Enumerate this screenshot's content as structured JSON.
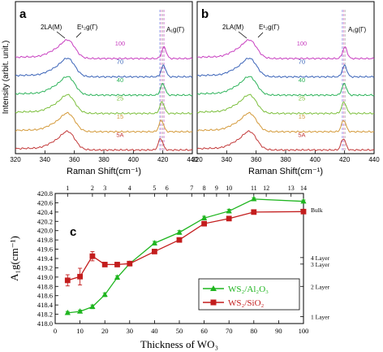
{
  "panels": {
    "a": {
      "letter": "a"
    },
    "b": {
      "letter": "b"
    },
    "c": {
      "letter": "c"
    }
  },
  "chart_data": [
    {
      "panel": "a",
      "type": "line",
      "xlabel": "Raman Shift(cm⁻¹)",
      "ylabel": "Intensity (arbit. unit.)",
      "xlim": [
        320,
        440
      ],
      "xticks": [
        320,
        340,
        360,
        380,
        400,
        420,
        440
      ],
      "peak_labels": [
        "2LA(M)",
        "E¹₂g(Γ)",
        "A₁g(Γ)"
      ],
      "dashed_lines_x": [
        418.0,
        419.0,
        420.0,
        420.8
      ],
      "series": [
        {
          "name": "100",
          "color": "#c83fc0",
          "peak1": 356,
          "peak2": 420.8
        },
        {
          "name": "70",
          "color": "#3a63b8",
          "peak1": 356,
          "peak2": 420.5
        },
        {
          "name": "40",
          "color": "#2db35a",
          "peak1": 356,
          "peak2": 420.0
        },
        {
          "name": "25",
          "color": "#7cbf3c",
          "peak1": 356,
          "peak2": 419.5
        },
        {
          "name": "15",
          "color": "#d49a3a",
          "peak1": 356,
          "peak2": 419.0
        },
        {
          "name": "5A",
          "color": "#c33a3a",
          "peak1": 356,
          "peak2": 418.5
        }
      ]
    },
    {
      "panel": "b",
      "type": "line",
      "xlabel": "Raman Shift(cm⁻¹)",
      "xlim": [
        320,
        440
      ],
      "xticks": [
        320,
        340,
        360,
        380,
        400,
        420,
        440
      ],
      "peak_labels": [
        "2LA(M)",
        "E¹₂g(Γ)",
        "A₁g(Γ)"
      ],
      "dashed_lines_x": [
        418.5,
        419.5,
        420.3
      ],
      "series": [
        {
          "name": "100",
          "color": "#c83fc0",
          "peak1": 356,
          "peak2": 420.2
        },
        {
          "name": "70",
          "color": "#3a63b8",
          "peak1": 356,
          "peak2": 420.0
        },
        {
          "name": "40",
          "color": "#2db35a",
          "peak1": 356,
          "peak2": 419.8
        },
        {
          "name": "25",
          "color": "#7cbf3c",
          "peak1": 356,
          "peak2": 419.6
        },
        {
          "name": "15",
          "color": "#d49a3a",
          "peak1": 356,
          "peak2": 419.4
        },
        {
          "name": "5A",
          "color": "#c33a3a",
          "peak1": 356,
          "peak2": 419.2
        }
      ]
    },
    {
      "panel": "c",
      "type": "line",
      "xlabel": "Thickness of WO₃",
      "ylabel": "A₁g(cm⁻¹)",
      "xlim": [
        0,
        100
      ],
      "ylim": [
        418.0,
        420.8
      ],
      "xticks": [
        0,
        10,
        20,
        30,
        40,
        50,
        60,
        70,
        80,
        90,
        100
      ],
      "yticks": [
        418.0,
        418.2,
        418.4,
        418.6,
        418.8,
        419.0,
        419.2,
        419.4,
        419.6,
        419.8,
        420.0,
        420.2,
        420.4,
        420.6,
        420.8
      ],
      "top_axis": {
        "ticks": [
          {
            "label": "1",
            "x": 5
          },
          {
            "label": "2",
            "x": 15
          },
          {
            "label": "3",
            "x": 20
          },
          {
            "label": "4",
            "x": 30
          },
          {
            "label": "5",
            "x": 40
          },
          {
            "label": "6",
            "x": 45
          },
          {
            "label": "7",
            "x": 55
          },
          {
            "label": "8",
            "x": 60
          },
          {
            "label": "9",
            "x": 65
          },
          {
            "label": "10",
            "x": 70
          },
          {
            "label": "11",
            "x": 80
          },
          {
            "label": "12",
            "x": 85
          },
          {
            "label": "13",
            "x": 95
          },
          {
            "label": "14",
            "x": 100
          }
        ]
      },
      "right_axis": {
        "labels": [
          {
            "label": "Bulk",
            "y": 420.45
          },
          {
            "label": "4 Layer",
            "y": 419.42
          },
          {
            "label": "3 Layer",
            "y": 419.28
          },
          {
            "label": "2 Layer",
            "y": 418.8
          },
          {
            "label": "1 Layer",
            "y": 418.15
          }
        ]
      },
      "legend_position": "bottom-right",
      "series": [
        {
          "name": "WS₂/Al₂O₃",
          "color": "#1fb51f",
          "marker": "triangle",
          "points": [
            {
              "x": 5,
              "y": 418.23,
              "err": 0.03
            },
            {
              "x": 10,
              "y": 418.26,
              "err": 0.03
            },
            {
              "x": 15,
              "y": 418.36,
              "err": 0.04
            },
            {
              "x": 20,
              "y": 418.62,
              "err": 0.04
            },
            {
              "x": 25,
              "y": 418.99,
              "err": 0.04
            },
            {
              "x": 30,
              "y": 419.29,
              "err": 0.04
            },
            {
              "x": 40,
              "y": 419.73,
              "err": 0.04
            },
            {
              "x": 50,
              "y": 419.96,
              "err": 0.04
            },
            {
              "x": 60,
              "y": 420.27,
              "err": 0.04
            },
            {
              "x": 70,
              "y": 420.42,
              "err": 0.04
            },
            {
              "x": 80,
              "y": 420.68,
              "err": 0.03
            },
            {
              "x": 100,
              "y": 420.63,
              "err": 0.03
            }
          ]
        },
        {
          "name": "WS₂/SiO₂",
          "color": "#c31d1d",
          "marker": "square",
          "points": [
            {
              "x": 5,
              "y": 418.93,
              "err": 0.12
            },
            {
              "x": 10,
              "y": 419.01,
              "err": 0.18
            },
            {
              "x": 15,
              "y": 419.45,
              "err": 0.1
            },
            {
              "x": 20,
              "y": 419.27,
              "err": 0.03
            },
            {
              "x": 25,
              "y": 419.27,
              "err": 0.03
            },
            {
              "x": 30,
              "y": 419.29,
              "err": 0.03
            },
            {
              "x": 40,
              "y": 419.55,
              "err": 0.03
            },
            {
              "x": 50,
              "y": 419.8,
              "err": 0.03
            },
            {
              "x": 60,
              "y": 420.15,
              "err": 0.03
            },
            {
              "x": 70,
              "y": 420.26,
              "err": 0.03
            },
            {
              "x": 80,
              "y": 420.4,
              "err": 0.03
            },
            {
              "x": 100,
              "y": 420.41,
              "err": 0.03
            }
          ]
        }
      ]
    }
  ]
}
